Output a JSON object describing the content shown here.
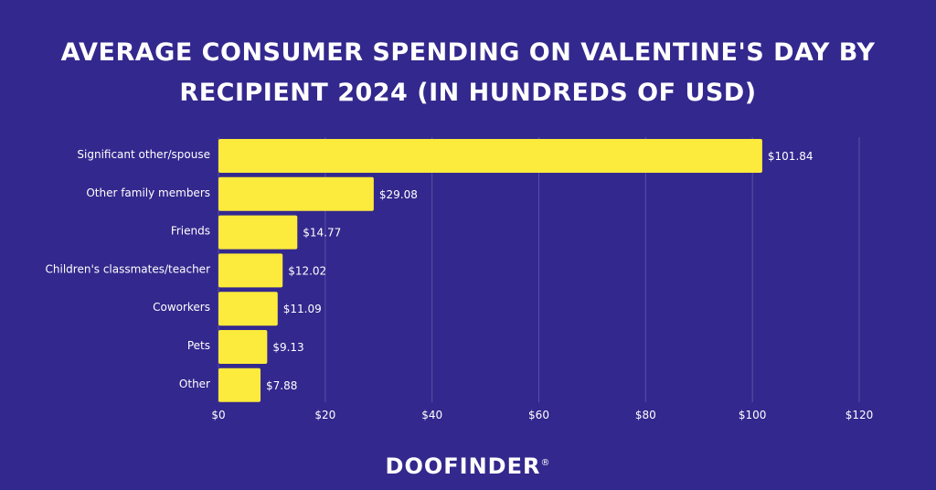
{
  "title_line1": "AVERAGE CONSUMER SPENDING ON VALENTINE'S DAY BY",
  "title_line2": "RECIPIENT 2024 (IN HUNDREDS OF USD)",
  "logo": {
    "text": "DOOFINDER",
    "mark": "®"
  },
  "colors": {
    "background": "#33288d",
    "bar": "#fcea3c",
    "text": "#ffffff",
    "grid": "#5a50a6"
  },
  "chart_data": {
    "type": "bar",
    "orientation": "horizontal",
    "title": "AVERAGE CONSUMER SPENDING ON VALENTINE'S DAY BY RECIPIENT 2024 (IN HUNDREDS OF USD)",
    "categories": [
      "Significant other/spouse",
      "Other family members",
      "Friends",
      "Children's classmates/teacher",
      "Coworkers",
      "Pets",
      "Other"
    ],
    "values": [
      101.84,
      29.08,
      14.77,
      12.02,
      11.09,
      9.13,
      7.88
    ],
    "value_labels": [
      "$101.84",
      "$29.08",
      "$14.77",
      "$12.02",
      "$11.09",
      "$9.13",
      "$7.88"
    ],
    "xticks": [
      0,
      20,
      40,
      60,
      80,
      100,
      120
    ],
    "xtick_labels": [
      "$0",
      "$20",
      "$40",
      "$60",
      "$80",
      "$100",
      "$120"
    ],
    "xlim": [
      0,
      120
    ],
    "grid": true,
    "xlabel": "",
    "ylabel": ""
  }
}
